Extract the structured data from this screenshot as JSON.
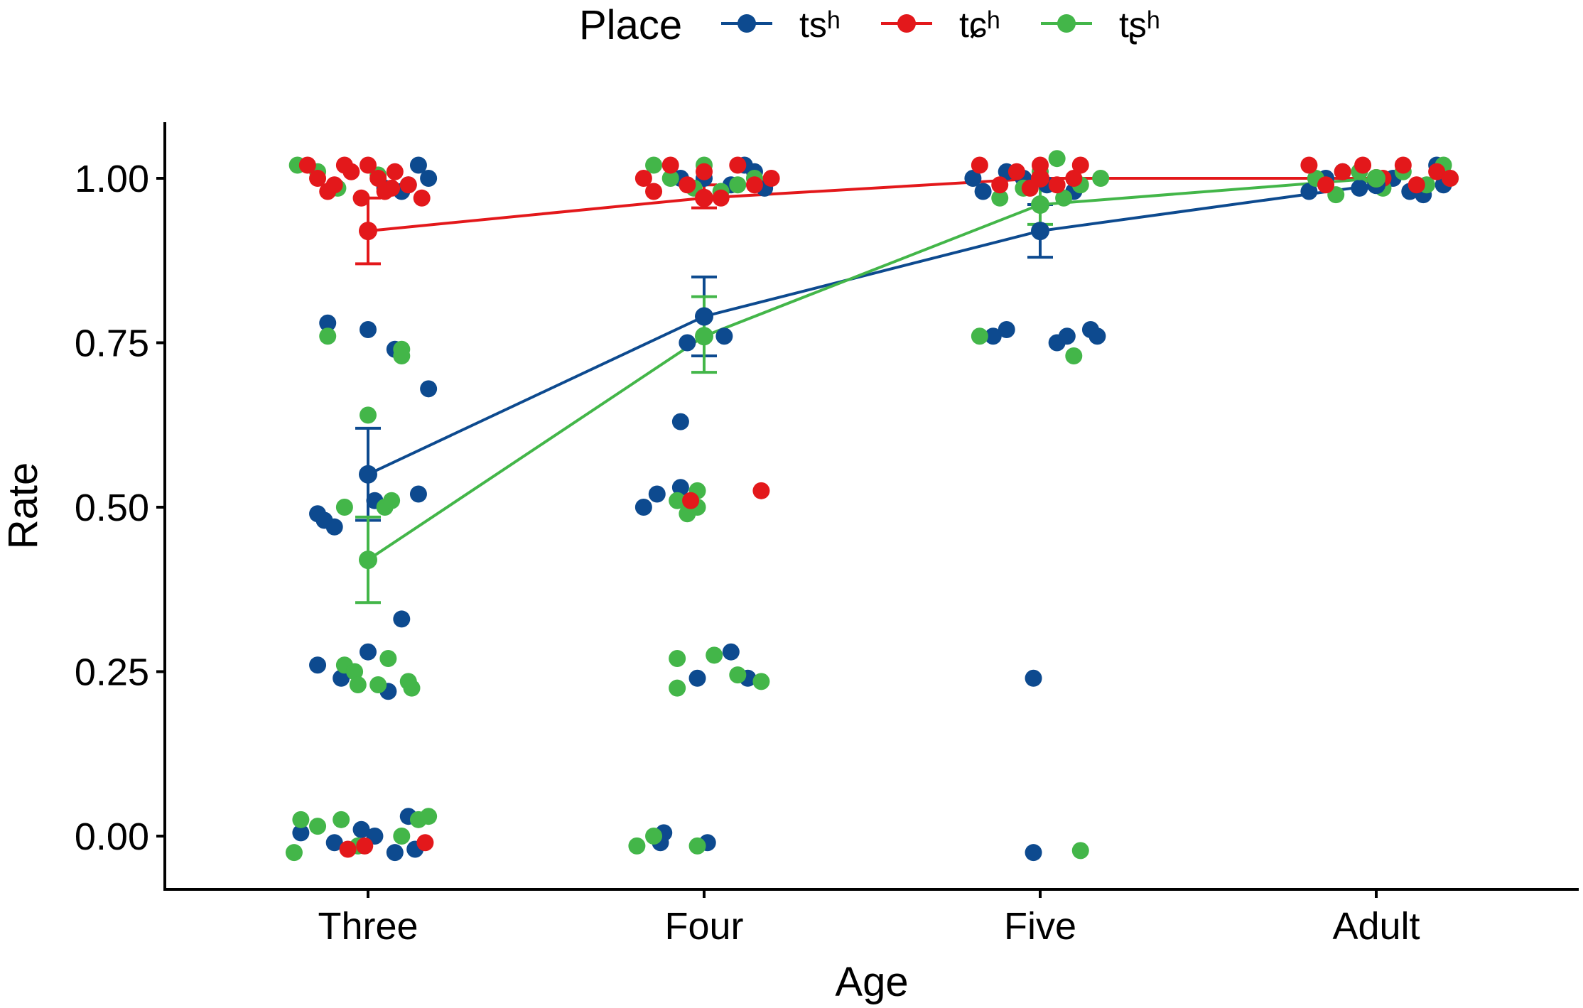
{
  "chart_data": {
    "type": "scatter",
    "title": "",
    "xlabel": "Age",
    "ylabel": "Rate",
    "categories": [
      "Three",
      "Four",
      "Five",
      "Adult"
    ],
    "ylim": [
      -0.07,
      1.08
    ],
    "yticks": [
      0.0,
      0.25,
      0.5,
      0.75,
      1.0
    ],
    "ytick_labels": [
      "0.00",
      "0.25",
      "0.50",
      "0.75",
      "1.00"
    ],
    "grid": false,
    "legend": {
      "title": "Place",
      "position": "top",
      "entries": [
        "tsʰ",
        "tɕʰ",
        "tʂʰ"
      ]
    },
    "series": [
      {
        "name": "tsʰ",
        "color": "#0d4a8f",
        "means": [
          0.55,
          0.79,
          0.92,
          0.99
        ],
        "error_low": [
          0.48,
          0.73,
          0.88,
          0.985
        ],
        "error_high": [
          0.62,
          0.85,
          0.96,
          1.0
        ],
        "points": [
          [
            0.88,
            0.78
          ],
          [
            1.0,
            0.77
          ],
          [
            1.08,
            0.74
          ],
          [
            1.18,
            0.68
          ],
          [
            0.85,
            0.49
          ],
          [
            0.87,
            0.48
          ],
          [
            0.9,
            0.47
          ],
          [
            1.02,
            0.51
          ],
          [
            1.15,
            0.52
          ],
          [
            1.1,
            0.33
          ],
          [
            0.85,
            0.26
          ],
          [
            0.92,
            0.24
          ],
          [
            1.0,
            0.28
          ],
          [
            1.06,
            0.22
          ],
          [
            0.8,
            0.005
          ],
          [
            0.9,
            -0.01
          ],
          [
            0.98,
            0.01
          ],
          [
            1.02,
            0.0
          ],
          [
            1.08,
            -0.025
          ],
          [
            1.12,
            0.03
          ],
          [
            1.14,
            -0.02
          ],
          [
            1.1,
            0.98
          ],
          [
            1.15,
            1.02
          ],
          [
            1.18,
            1.0
          ],
          [
            1.12,
            0.99
          ],
          [
            1.05,
            0.985
          ],
          [
            1.82,
            0.5
          ],
          [
            1.86,
            0.52
          ],
          [
            1.93,
            0.63
          ],
          [
            1.93,
            0.53
          ],
          [
            1.95,
            0.75
          ],
          [
            2.06,
            0.76
          ],
          [
            2.13,
            0.24
          ],
          [
            1.98,
            0.24
          ],
          [
            2.08,
            0.28
          ],
          [
            1.88,
            0.005
          ],
          [
            1.87,
            -0.01
          ],
          [
            2.01,
            -0.01
          ],
          [
            2.0,
            1.0
          ],
          [
            2.08,
            0.99
          ],
          [
            2.12,
            1.02
          ],
          [
            2.18,
            0.985
          ],
          [
            1.93,
            1.0
          ],
          [
            2.15,
            1.01
          ],
          [
            2.86,
            0.76
          ],
          [
            2.9,
            0.77
          ],
          [
            3.05,
            0.75
          ],
          [
            3.08,
            0.76
          ],
          [
            3.15,
            0.77
          ],
          [
            3.17,
            0.76
          ],
          [
            2.98,
            0.24
          ],
          [
            2.98,
            -0.025
          ],
          [
            2.8,
            1.0
          ],
          [
            2.83,
            0.98
          ],
          [
            2.9,
            1.01
          ],
          [
            2.95,
            1.0
          ],
          [
            3.02,
            0.99
          ],
          [
            3.1,
            0.98
          ],
          [
            3.8,
            0.98
          ],
          [
            3.85,
            1.0
          ],
          [
            3.95,
            0.985
          ],
          [
            4.05,
            1.0
          ],
          [
            4.1,
            0.98
          ],
          [
            4.18,
            1.02
          ],
          [
            4.2,
            0.99
          ],
          [
            3.9,
            1.01
          ],
          [
            4.14,
            0.975
          ]
        ]
      },
      {
        "name": "tɕʰ",
        "color": "#e3181b",
        "means": [
          0.92,
          0.97,
          1.0,
          1.0
        ],
        "error_low": [
          0.87,
          0.955,
          0.99,
          0.995
        ],
        "error_high": [
          0.97,
          0.99,
          1.0,
          1.0
        ],
        "points": [
          [
            0.82,
            1.02
          ],
          [
            0.85,
            1.0
          ],
          [
            0.9,
            0.99
          ],
          [
            0.95,
            1.01
          ],
          [
            0.98,
            0.97
          ],
          [
            1.0,
            1.02
          ],
          [
            1.05,
            0.98
          ],
          [
            1.08,
            1.01
          ],
          [
            1.12,
            0.99
          ],
          [
            1.16,
            0.97
          ],
          [
            0.88,
            0.98
          ],
          [
            0.93,
            1.02
          ],
          [
            1.03,
            1.0
          ],
          [
            1.07,
            0.985
          ],
          [
            0.94,
            -0.02
          ],
          [
            0.99,
            -0.015
          ],
          [
            1.17,
            -0.01
          ],
          [
            1.82,
            1.0
          ],
          [
            1.85,
            0.98
          ],
          [
            1.9,
            1.02
          ],
          [
            1.95,
            0.99
          ],
          [
            2.0,
            1.01
          ],
          [
            2.05,
            0.97
          ],
          [
            2.1,
            1.02
          ],
          [
            2.15,
            0.99
          ],
          [
            2.2,
            1.0
          ],
          [
            1.96,
            0.51
          ],
          [
            2.17,
            0.525
          ],
          [
            2.82,
            1.02
          ],
          [
            2.88,
            0.99
          ],
          [
            2.93,
            1.01
          ],
          [
            3.0,
            1.02
          ],
          [
            3.05,
            0.99
          ],
          [
            3.1,
            1.0
          ],
          [
            3.12,
            1.02
          ],
          [
            2.97,
            0.985
          ],
          [
            3.8,
            1.02
          ],
          [
            3.85,
            0.99
          ],
          [
            3.9,
            1.01
          ],
          [
            3.96,
            1.02
          ],
          [
            4.02,
            1.0
          ],
          [
            4.08,
            1.02
          ],
          [
            4.12,
            0.99
          ],
          [
            4.18,
            1.01
          ],
          [
            4.22,
            1.0
          ]
        ]
      },
      {
        "name": "tʂʰ",
        "color": "#43b649",
        "means": [
          0.42,
          0.76,
          0.96,
          1.0
        ],
        "error_low": [
          0.355,
          0.705,
          0.93,
          0.995
        ],
        "error_high": [
          0.485,
          0.82,
          0.99,
          1.0
        ],
        "points": [
          [
            0.88,
            0.76
          ],
          [
            1.1,
            0.74
          ],
          [
            1.1,
            0.73
          ],
          [
            1.0,
            0.64
          ],
          [
            0.93,
            0.5
          ],
          [
            1.05,
            0.5
          ],
          [
            1.07,
            0.51
          ],
          [
            0.93,
            0.26
          ],
          [
            0.96,
            0.25
          ],
          [
            0.97,
            0.23
          ],
          [
            1.03,
            0.23
          ],
          [
            1.06,
            0.27
          ],
          [
            1.12,
            0.235
          ],
          [
            1.13,
            0.225
          ],
          [
            0.8,
            0.025
          ],
          [
            0.85,
            0.015
          ],
          [
            0.92,
            0.025
          ],
          [
            0.78,
            -0.025
          ],
          [
            0.97,
            -0.015
          ],
          [
            1.1,
            0.0
          ],
          [
            1.15,
            0.025
          ],
          [
            1.18,
            0.03
          ],
          [
            0.79,
            1.02
          ],
          [
            0.91,
            0.985
          ],
          [
            1.03,
            1.005
          ],
          [
            0.85,
            1.01
          ],
          [
            1.92,
            0.51
          ],
          [
            1.95,
            0.49
          ],
          [
            1.98,
            0.5
          ],
          [
            1.98,
            0.525
          ],
          [
            1.92,
            0.27
          ],
          [
            1.92,
            0.225
          ],
          [
            2.03,
            0.275
          ],
          [
            2.1,
            0.245
          ],
          [
            2.17,
            0.235
          ],
          [
            1.8,
            -0.015
          ],
          [
            1.85,
            0.0
          ],
          [
            1.98,
            -0.015
          ],
          [
            1.85,
            1.02
          ],
          [
            1.9,
            1.0
          ],
          [
            2.0,
            1.02
          ],
          [
            2.05,
            0.98
          ],
          [
            2.1,
            0.99
          ],
          [
            2.15,
            1.0
          ],
          [
            1.97,
            0.985
          ],
          [
            2.82,
            0.76
          ],
          [
            3.1,
            0.73
          ],
          [
            3.12,
            -0.022
          ],
          [
            2.88,
            0.97
          ],
          [
            2.95,
            0.985
          ],
          [
            3.0,
            1.01
          ],
          [
            3.05,
            1.03
          ],
          [
            3.12,
            0.99
          ],
          [
            3.18,
            1.0
          ],
          [
            3.07,
            0.97
          ],
          [
            3.82,
            1.0
          ],
          [
            3.88,
            0.975
          ],
          [
            3.95,
            1.01
          ],
          [
            4.02,
            0.985
          ],
          [
            4.08,
            1.01
          ],
          [
            4.15,
            0.99
          ],
          [
            4.2,
            1.02
          ],
          [
            4.22,
            1.0
          ]
        ]
      }
    ]
  }
}
